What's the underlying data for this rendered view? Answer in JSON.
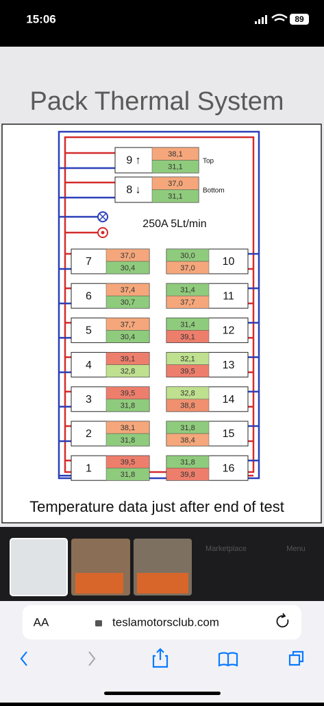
{
  "status_bar": {
    "time": "15:06",
    "battery": "89"
  },
  "image": {
    "title": "Pack Thermal System",
    "top_modules": [
      {
        "label": "9 ↑",
        "tag": "Top",
        "temps": [
          "38,1",
          "31,1"
        ],
        "colors": [
          "#f5a77b",
          "#8fcb7c"
        ]
      },
      {
        "label": "8 ↓",
        "tag": "Bottom",
        "temps": [
          "37,0",
          "31,1"
        ],
        "colors": [
          "#f5a77b",
          "#8fcb7c"
        ]
      }
    ],
    "flow": "250A 5Lt/min",
    "left_modules": [
      {
        "label": "7",
        "temps": [
          "37,0",
          "30,4"
        ],
        "colors": [
          "#f5a77b",
          "#8fcb7c"
        ]
      },
      {
        "label": "6",
        "temps": [
          "37,4",
          "30,7"
        ],
        "colors": [
          "#f5a77b",
          "#8fcb7c"
        ]
      },
      {
        "label": "5",
        "temps": [
          "37,7",
          "30,4"
        ],
        "colors": [
          "#f5a77b",
          "#8fcb7c"
        ]
      },
      {
        "label": "4",
        "temps": [
          "39,1",
          "32,8"
        ],
        "colors": [
          "#ee7e6c",
          "#bfe08e"
        ]
      },
      {
        "label": "3",
        "temps": [
          "39,5",
          "31,8"
        ],
        "colors": [
          "#ee7e6c",
          "#8fcb7c"
        ]
      },
      {
        "label": "2",
        "temps": [
          "38,1",
          "31,8"
        ],
        "colors": [
          "#f5a77b",
          "#8fcb7c"
        ]
      },
      {
        "label": "1",
        "temps": [
          "39,5",
          "31,8"
        ],
        "colors": [
          "#ee7e6c",
          "#8fcb7c"
        ]
      }
    ],
    "right_modules": [
      {
        "label": "10",
        "temps": [
          "30,0",
          "37,0"
        ],
        "colors": [
          "#8fcb7c",
          "#f5a77b"
        ]
      },
      {
        "label": "11",
        "temps": [
          "31,4",
          "37,7"
        ],
        "colors": [
          "#8fcb7c",
          "#f5a77b"
        ]
      },
      {
        "label": "12",
        "temps": [
          "31,4",
          "39,1"
        ],
        "colors": [
          "#8fcb7c",
          "#ee7e6c"
        ]
      },
      {
        "label": "13",
        "temps": [
          "32,1",
          "39,5"
        ],
        "colors": [
          "#bfe08e",
          "#ee7e6c"
        ]
      },
      {
        "label": "14",
        "temps": [
          "32,8",
          "38,8"
        ],
        "colors": [
          "#bfe08e",
          "#f0906f"
        ]
      },
      {
        "label": "15",
        "temps": [
          "31,8",
          "38,4"
        ],
        "colors": [
          "#8fcb7c",
          "#f5a77b"
        ]
      },
      {
        "label": "16",
        "temps": [
          "31,8",
          "39,8"
        ],
        "colors": [
          "#8fcb7c",
          "#ee7e6c"
        ]
      }
    ],
    "caption": "Temperature data just after end of test"
  },
  "background": {
    "items": [
      "Marketplace",
      "Menu"
    ]
  },
  "browser": {
    "text_size": "AA",
    "url": "teslamotorsclub.com"
  }
}
